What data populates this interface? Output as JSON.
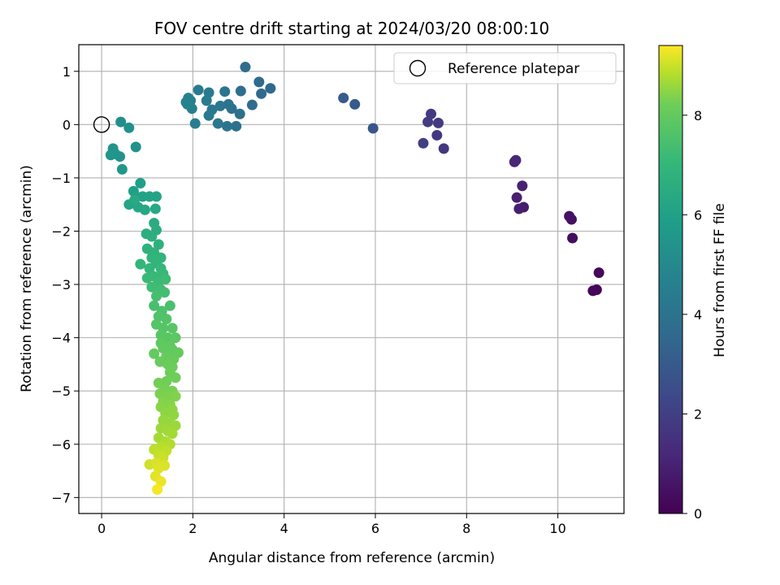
{
  "chart_data": {
    "type": "scatter",
    "title": "FOV centre drift starting at 2024/03/20 08:00:10",
    "xlabel": "Angular distance from reference (arcmin)",
    "ylabel": "Rotation from reference (arcmin)",
    "xlim": [
      -0.5,
      11.45
    ],
    "ylim": [
      -7.3,
      1.5
    ],
    "xticks": [
      0,
      2,
      4,
      6,
      8,
      10
    ],
    "yticks": [
      1,
      0,
      -1,
      -2,
      -3,
      -4,
      -5,
      -6,
      -7
    ],
    "grid": true,
    "legend": {
      "placement": "top-right",
      "entries": [
        "Reference platepar"
      ]
    },
    "reference_point": {
      "x": 0,
      "y": 0,
      "label": "Reference platepar"
    },
    "colorbar": {
      "label": "Hours from first FF file",
      "range": [
        0,
        9.4
      ],
      "ticks": [
        0,
        2,
        4,
        6,
        8
      ],
      "colormap": "viridis"
    },
    "points": [
      {
        "x": 10.85,
        "y": -3.1,
        "h": 0.1
      },
      {
        "x": 10.77,
        "y": -3.12,
        "h": 0.15
      },
      {
        "x": 10.9,
        "y": -2.78,
        "h": 0.2
      },
      {
        "x": 10.32,
        "y": -2.13,
        "h": 0.35
      },
      {
        "x": 10.3,
        "y": -1.78,
        "h": 0.45
      },
      {
        "x": 10.25,
        "y": -1.72,
        "h": 0.5
      },
      {
        "x": 9.25,
        "y": -1.55,
        "h": 0.85
      },
      {
        "x": 9.15,
        "y": -1.58,
        "h": 0.9
      },
      {
        "x": 9.1,
        "y": -1.37,
        "h": 0.95
      },
      {
        "x": 9.22,
        "y": -1.15,
        "h": 1.0
      },
      {
        "x": 9.05,
        "y": -0.7,
        "h": 1.1
      },
      {
        "x": 9.08,
        "y": -0.67,
        "h": 1.15
      },
      {
        "x": 7.5,
        "y": -0.45,
        "h": 1.7
      },
      {
        "x": 7.35,
        "y": -0.2,
        "h": 1.75
      },
      {
        "x": 7.38,
        "y": 0.03,
        "h": 1.8
      },
      {
        "x": 7.22,
        "y": 0.2,
        "h": 1.85
      },
      {
        "x": 7.15,
        "y": 0.05,
        "h": 1.9
      },
      {
        "x": 7.05,
        "y": -0.35,
        "h": 1.95
      },
      {
        "x": 5.95,
        "y": -0.07,
        "h": 2.8
      },
      {
        "x": 5.55,
        "y": 0.38,
        "h": 2.95
      },
      {
        "x": 5.3,
        "y": 0.5,
        "h": 3.05
      },
      {
        "x": 3.7,
        "y": 0.68,
        "h": 3.55
      },
      {
        "x": 3.5,
        "y": 0.58,
        "h": 3.6
      },
      {
        "x": 3.45,
        "y": 0.8,
        "h": 3.65
      },
      {
        "x": 3.15,
        "y": 1.08,
        "h": 3.7
      },
      {
        "x": 3.3,
        "y": 0.37,
        "h": 3.75
      },
      {
        "x": 3.05,
        "y": 0.63,
        "h": 3.8
      },
      {
        "x": 3.03,
        "y": 0.2,
        "h": 3.85
      },
      {
        "x": 2.95,
        "y": -0.03,
        "h": 3.9
      },
      {
        "x": 2.85,
        "y": 0.3,
        "h": 3.95
      },
      {
        "x": 2.78,
        "y": 0.38,
        "h": 4.0
      },
      {
        "x": 2.75,
        "y": -0.03,
        "h": 4.05
      },
      {
        "x": 2.7,
        "y": 0.62,
        "h": 4.1
      },
      {
        "x": 2.6,
        "y": 0.35,
        "h": 4.15
      },
      {
        "x": 2.55,
        "y": 0.02,
        "h": 4.2
      },
      {
        "x": 2.42,
        "y": 0.28,
        "h": 4.25
      },
      {
        "x": 2.35,
        "y": 0.17,
        "h": 4.3
      },
      {
        "x": 2.35,
        "y": 0.6,
        "h": 4.35
      },
      {
        "x": 2.3,
        "y": 0.45,
        "h": 4.4
      },
      {
        "x": 2.12,
        "y": 0.65,
        "h": 4.45
      },
      {
        "x": 2.05,
        "y": 0.02,
        "h": 4.5
      },
      {
        "x": 1.98,
        "y": 0.3,
        "h": 4.55
      },
      {
        "x": 1.95,
        "y": 0.45,
        "h": 4.6
      },
      {
        "x": 1.9,
        "y": 0.5,
        "h": 4.65
      },
      {
        "x": 1.85,
        "y": 0.42,
        "h": 4.7
      },
      {
        "x": 1.88,
        "y": 0.38,
        "h": 4.75
      },
      {
        "x": 0.42,
        "y": 0.05,
        "h": 5.2
      },
      {
        "x": 0.6,
        "y": -0.06,
        "h": 5.3
      },
      {
        "x": 0.75,
        "y": -0.42,
        "h": 5.35
      },
      {
        "x": 0.4,
        "y": -0.6,
        "h": 5.4
      },
      {
        "x": 0.25,
        "y": -0.45,
        "h": 5.45
      },
      {
        "x": 0.3,
        "y": -0.55,
        "h": 5.5
      },
      {
        "x": 0.2,
        "y": -0.57,
        "h": 5.55
      },
      {
        "x": 0.45,
        "y": -0.84,
        "h": 5.6
      },
      {
        "x": 0.85,
        "y": -1.1,
        "h": 5.9
      },
      {
        "x": 0.7,
        "y": -1.25,
        "h": 5.95
      },
      {
        "x": 0.75,
        "y": -1.35,
        "h": 6.0
      },
      {
        "x": 0.9,
        "y": -1.35,
        "h": 6.05
      },
      {
        "x": 1.05,
        "y": -1.35,
        "h": 6.1
      },
      {
        "x": 1.2,
        "y": -1.35,
        "h": 6.15
      },
      {
        "x": 0.6,
        "y": -1.5,
        "h": 6.2
      },
      {
        "x": 0.8,
        "y": -1.55,
        "h": 6.25
      },
      {
        "x": 0.95,
        "y": -1.6,
        "h": 6.3
      },
      {
        "x": 1.18,
        "y": -1.58,
        "h": 6.35
      },
      {
        "x": 0.72,
        "y": -1.42,
        "h": 6.4
      },
      {
        "x": 1.15,
        "y": -1.85,
        "h": 6.5
      },
      {
        "x": 1.2,
        "y": -1.98,
        "h": 6.55
      },
      {
        "x": 0.98,
        "y": -2.05,
        "h": 6.6
      },
      {
        "x": 1.1,
        "y": -2.1,
        "h": 6.65
      },
      {
        "x": 1.25,
        "y": -2.25,
        "h": 6.7
      },
      {
        "x": 1.0,
        "y": -2.33,
        "h": 6.75
      },
      {
        "x": 1.15,
        "y": -2.4,
        "h": 6.8
      },
      {
        "x": 1.1,
        "y": -2.5,
        "h": 6.85
      },
      {
        "x": 1.3,
        "y": -2.5,
        "h": 6.9
      },
      {
        "x": 1.2,
        "y": -2.6,
        "h": 6.92
      },
      {
        "x": 0.85,
        "y": -2.62,
        "h": 6.95
      },
      {
        "x": 1.05,
        "y": -2.7,
        "h": 7.0
      },
      {
        "x": 1.3,
        "y": -2.7,
        "h": 7.05
      },
      {
        "x": 1.35,
        "y": -2.8,
        "h": 7.1
      },
      {
        "x": 1.15,
        "y": -2.85,
        "h": 7.12
      },
      {
        "x": 1.0,
        "y": -2.88,
        "h": 7.15
      },
      {
        "x": 1.25,
        "y": -2.95,
        "h": 7.2
      },
      {
        "x": 1.4,
        "y": -2.9,
        "h": 7.22
      },
      {
        "x": 1.1,
        "y": -3.05,
        "h": 7.25
      },
      {
        "x": 1.3,
        "y": -3.1,
        "h": 7.3
      },
      {
        "x": 1.38,
        "y": -3.15,
        "h": 7.35
      },
      {
        "x": 1.2,
        "y": -3.22,
        "h": 7.4
      },
      {
        "x": 1.15,
        "y": -3.4,
        "h": 7.45
      },
      {
        "x": 1.5,
        "y": -3.4,
        "h": 7.5
      },
      {
        "x": 1.32,
        "y": -3.5,
        "h": 7.55
      },
      {
        "x": 1.25,
        "y": -3.6,
        "h": 7.6
      },
      {
        "x": 1.42,
        "y": -3.65,
        "h": 7.65
      },
      {
        "x": 1.2,
        "y": -3.75,
        "h": 7.7
      },
      {
        "x": 1.35,
        "y": -3.82,
        "h": 7.72
      },
      {
        "x": 1.55,
        "y": -3.82,
        "h": 7.75
      },
      {
        "x": 1.3,
        "y": -3.95,
        "h": 7.8
      },
      {
        "x": 1.45,
        "y": -4.0,
        "h": 7.82
      },
      {
        "x": 1.62,
        "y": -4.0,
        "h": 7.85
      },
      {
        "x": 1.3,
        "y": -4.1,
        "h": 7.9
      },
      {
        "x": 1.5,
        "y": -4.15,
        "h": 7.92
      },
      {
        "x": 1.35,
        "y": -4.2,
        "h": 7.95
      },
      {
        "x": 1.55,
        "y": -4.22,
        "h": 7.98
      },
      {
        "x": 1.68,
        "y": -4.28,
        "h": 8.0
      },
      {
        "x": 1.15,
        "y": -4.3,
        "h": 8.02
      },
      {
        "x": 1.42,
        "y": -4.35,
        "h": 8.05
      },
      {
        "x": 1.58,
        "y": -4.4,
        "h": 8.08
      },
      {
        "x": 1.28,
        "y": -4.45,
        "h": 8.1
      },
      {
        "x": 1.45,
        "y": -4.5,
        "h": 8.12
      },
      {
        "x": 1.55,
        "y": -4.55,
        "h": 8.15
      },
      {
        "x": 1.5,
        "y": -4.65,
        "h": 8.18
      },
      {
        "x": 1.62,
        "y": -4.75,
        "h": 8.2
      },
      {
        "x": 1.42,
        "y": -4.82,
        "h": 8.22
      },
      {
        "x": 1.25,
        "y": -4.85,
        "h": 8.25
      },
      {
        "x": 1.38,
        "y": -4.95,
        "h": 8.28
      },
      {
        "x": 1.55,
        "y": -5.0,
        "h": 8.3
      },
      {
        "x": 1.28,
        "y": -5.05,
        "h": 8.32
      },
      {
        "x": 1.45,
        "y": -5.1,
        "h": 8.35
      },
      {
        "x": 1.62,
        "y": -5.1,
        "h": 8.38
      },
      {
        "x": 1.35,
        "y": -5.2,
        "h": 8.4
      },
      {
        "x": 1.5,
        "y": -5.25,
        "h": 8.42
      },
      {
        "x": 1.3,
        "y": -5.3,
        "h": 8.45
      },
      {
        "x": 1.55,
        "y": -5.35,
        "h": 8.48
      },
      {
        "x": 1.4,
        "y": -5.42,
        "h": 8.5
      },
      {
        "x": 1.58,
        "y": -5.45,
        "h": 8.52
      },
      {
        "x": 1.35,
        "y": -5.55,
        "h": 8.55
      },
      {
        "x": 1.5,
        "y": -5.6,
        "h": 8.58
      },
      {
        "x": 1.62,
        "y": -5.65,
        "h": 8.6
      },
      {
        "x": 1.3,
        "y": -5.7,
        "h": 8.62
      },
      {
        "x": 1.45,
        "y": -5.75,
        "h": 8.65
      },
      {
        "x": 1.55,
        "y": -5.8,
        "h": 8.68
      },
      {
        "x": 1.25,
        "y": -5.88,
        "h": 8.7
      },
      {
        "x": 1.4,
        "y": -5.95,
        "h": 8.75
      },
      {
        "x": 1.5,
        "y": -6.0,
        "h": 8.8
      },
      {
        "x": 1.3,
        "y": -6.05,
        "h": 8.85
      },
      {
        "x": 1.15,
        "y": -6.1,
        "h": 8.9
      },
      {
        "x": 1.42,
        "y": -6.12,
        "h": 8.92
      },
      {
        "x": 1.25,
        "y": -6.2,
        "h": 8.95
      },
      {
        "x": 1.35,
        "y": -6.25,
        "h": 9.0
      },
      {
        "x": 1.05,
        "y": -6.38,
        "h": 9.05
      },
      {
        "x": 1.2,
        "y": -6.35,
        "h": 9.1
      },
      {
        "x": 1.38,
        "y": -6.4,
        "h": 9.12
      },
      {
        "x": 1.25,
        "y": -6.45,
        "h": 9.15
      },
      {
        "x": 1.18,
        "y": -6.6,
        "h": 9.2
      },
      {
        "x": 1.3,
        "y": -6.7,
        "h": 9.25
      },
      {
        "x": 1.22,
        "y": -6.85,
        "h": 9.35
      }
    ]
  }
}
